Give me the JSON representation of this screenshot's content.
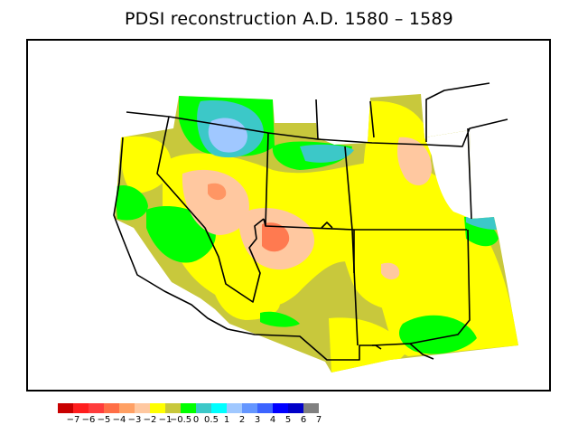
{
  "title": "PDSI reconstruction A.D. 1580 – 1589",
  "legend": {
    "colors": [
      "#c80000",
      "#ff1e1e",
      "#ff3c3c",
      "#ff6e46",
      "#ffa064",
      "#ffc8a0",
      "#ffff00",
      "#c8c83c",
      "#00ff00",
      "#3cc8c8",
      "#00ffff",
      "#a0c8ff",
      "#6496ff",
      "#3c64ff",
      "#0000ff",
      "#0000c8",
      "#808080"
    ],
    "ticks": [
      "−7",
      "−6",
      "−5",
      "−4",
      "−3",
      "−2",
      "−1",
      "−0.5",
      "0",
      "0.5",
      "1",
      "2",
      "3",
      "4",
      "5",
      "6",
      "7"
    ]
  },
  "map_colors": {
    "yellow": "#ffff00",
    "olive": "#c8c83c",
    "green": "#00ff00",
    "teal": "#3cc8c8",
    "light_blue": "#a0c8ff",
    "peach": "#ffc8a0",
    "salmon": "#ff9664",
    "orange": "#ff7a50"
  }
}
